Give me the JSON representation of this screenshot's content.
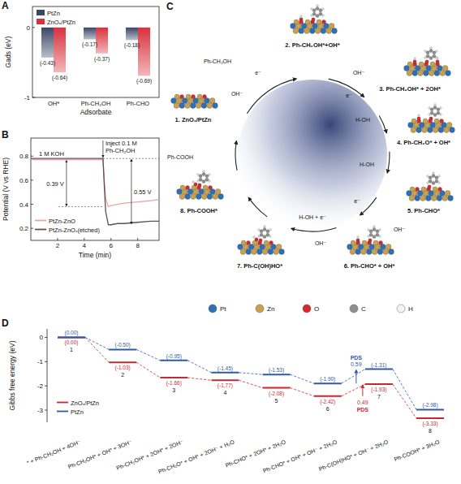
{
  "chart_data": [
    {
      "type": "bar",
      "title": "A",
      "categories": [
        "OH*",
        "Ph-CH₂OH",
        "Ph-CHO"
      ],
      "series": [
        {
          "name": "PtZn",
          "color": "#3a4868",
          "values": [
            -0.43,
            -0.17,
            -0.18
          ],
          "value_labels": [
            "(-0.43)",
            "(-0.17)",
            "(-0.18)"
          ]
        },
        {
          "name": "ZnOₓ/PtZn",
          "color": "#d8323c",
          "values": [
            -0.64,
            -0.37,
            -0.69
          ],
          "value_labels": [
            "(-0.64)",
            "(-0.37)",
            "(-0.69)"
          ]
        }
      ],
      "xlabel": "Adsorbate",
      "ylabel": "Gads (eV)",
      "ylim": [
        -1,
        0.3
      ],
      "yticks": [
        0,
        -1
      ],
      "legend": "upper left",
      "data_labels": true,
      "grid": false
    },
    {
      "type": "line",
      "title": "B",
      "x": [
        0,
        1,
        2,
        3,
        4,
        5,
        5.4,
        5.5,
        5.6,
        5.8,
        6,
        6.5,
        7,
        8,
        9,
        9.6
      ],
      "series": [
        {
          "name": "PtZn-ZnO",
          "color": "#eba3a3",
          "values": [
            0.77,
            0.77,
            0.77,
            0.77,
            0.77,
            0.77,
            0.77,
            0.6,
            0.45,
            0.38,
            0.39,
            0.4,
            0.41,
            0.42,
            0.43,
            0.44
          ]
        },
        {
          "name": "PtZn-ZnOₓ(etched)",
          "color": "#5e4f52",
          "values": [
            0.78,
            0.78,
            0.78,
            0.78,
            0.78,
            0.78,
            0.78,
            0.55,
            0.34,
            0.23,
            0.23,
            0.24,
            0.24,
            0.25,
            0.26,
            0.26
          ]
        }
      ],
      "xlabel": "Time (min)",
      "ylabel": "Potential (V vs RHE)",
      "xlim": [
        0,
        9.6
      ],
      "xticks": [
        2,
        4,
        6,
        8
      ],
      "ylim": [
        0.1,
        0.95
      ],
      "yticks": [
        0.2,
        0.4,
        0.6,
        0.8
      ],
      "legend": "lower left",
      "grid": false,
      "annotations": [
        {
          "text": "1 M KOH"
        },
        {
          "text": "Inject 0.1 M"
        },
        {
          "text": "Ph-CH₂OH"
        },
        {
          "text": "0.39 V",
          "series": "PtZn-ZnO"
        },
        {
          "text": "0.55 V",
          "series": "PtZn-ZnOₓ(etched)"
        }
      ]
    },
    {
      "type": "step",
      "title": "D",
      "categories": [
        "* + Ph-CH₂OH + 4OH⁻",
        "Ph-CH₂OH* + OH* + 3OH⁻",
        "Ph-CH₂OH* + 2OH* + 2OH⁻",
        "Ph-CH₂O* + OH* + 2OH⁻ + H₂O",
        "Ph-CHO* + 2OH* + 2H₂O",
        "Ph-CHO* + OH* + OH⁻ + 2H₂O",
        "Ph-C(OH)HO* + OH⁻ + 2H₂O",
        "Ph-COOH* + 3H₂O"
      ],
      "step_labels": [
        "1",
        "2",
        "3",
        "4",
        "5",
        "6",
        "7",
        "8"
      ],
      "series": [
        {
          "name": "ZnOₓ/PtZn",
          "color": "#c42a30",
          "values": [
            0.0,
            -1.03,
            -1.66,
            -1.77,
            -2.08,
            -2.42,
            -1.93,
            -3.33
          ],
          "value_labels": [
            "(0.00)",
            "(-1.03)",
            "(-1.66)",
            "(-1.77)",
            "(-2.08)",
            "(-2.42)",
            "(-1.93)",
            "(-3.33)"
          ]
        },
        {
          "name": "PtZn",
          "color": "#2f5aa8",
          "values": [
            0.0,
            -0.5,
            -0.95,
            -1.45,
            -1.53,
            -1.9,
            -1.31,
            -2.98
          ],
          "value_labels": [
            "(0.00)",
            "(-0.50)",
            "(-0.95)",
            "(-1.45)",
            "(-1.53)",
            "(-1.90)",
            "(-1.31)",
            "(-2.98)"
          ]
        }
      ],
      "ylabel": "Gibbs free energy (eV)",
      "ylim": [
        -3.5,
        0.35
      ],
      "yticks": [
        0,
        -1,
        -2,
        -3
      ],
      "legend": "lower left",
      "line_style": "dashed",
      "data_labels": true,
      "annotations": [
        {
          "text": "PDS",
          "value": 0.59,
          "series": "PtZn"
        },
        {
          "text": "PDS",
          "value": 0.49,
          "series": "ZnOₓ/PtZn"
        }
      ]
    }
  ],
  "diagram": {
    "title": "C",
    "nodes": [
      {
        "label": "1. ZnOₓ/PtZn"
      },
      {
        "label": "2. Ph-CH₂OH*+OH*"
      },
      {
        "label": "3. Ph-CH₂OH* + 2OH*"
      },
      {
        "label": "4. Ph-CH₂O* + OH*"
      },
      {
        "label": "5. Ph-CHO*"
      },
      {
        "label": "6. Ph-CHO* + OH*"
      },
      {
        "label": "7. Ph-C(OH)HO*"
      },
      {
        "label": "8. Ph-COOH*"
      }
    ],
    "arrow_labels": [
      "Ph-CH₂OH",
      "OH⁻",
      "e⁻",
      "OH⁻",
      "e⁻",
      "H-OH",
      "H-OH",
      "e⁻",
      "OH⁻",
      "H-OH + e⁻",
      "OH⁻",
      "Ph-COOH"
    ],
    "legend": [
      {
        "label": "Pt",
        "color": "#2f6fb5"
      },
      {
        "label": "Zn",
        "color": "#c9a24e"
      },
      {
        "label": "O",
        "color": "#d32a2a"
      },
      {
        "label": "C",
        "color": "#8e8e8e"
      },
      {
        "label": "H",
        "color": "#f4f4f4"
      }
    ]
  }
}
